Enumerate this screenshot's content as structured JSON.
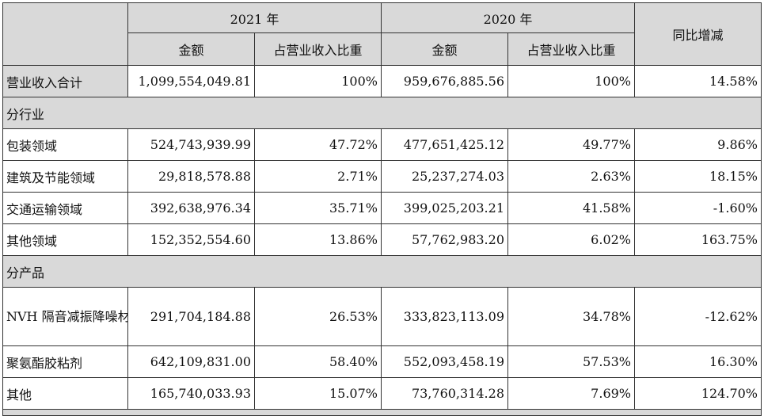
{
  "header": {
    "year_2021": "2021 年",
    "year_2020": "2020 年",
    "yoy": "同比增减",
    "amount": "金额",
    "ratio": "占营业收入比重"
  },
  "total": {
    "label": "营业收入合计",
    "amt_2021": "1,099,554,049.81",
    "pct_2021": "100%",
    "amt_2020": "959,676,885.56",
    "pct_2020": "100%",
    "yoy": "14.58%"
  },
  "by_industry": {
    "title": "分行业",
    "rows": [
      {
        "label": "包装领域",
        "amt_2021": "524,743,939.99",
        "pct_2021": "47.72%",
        "amt_2020": "477,651,425.12",
        "pct_2020": "49.77%",
        "yoy": "9.86%"
      },
      {
        "label": "建筑及节能领域",
        "amt_2021": "29,818,578.88",
        "pct_2021": "2.71%",
        "amt_2020": "25,237,274.03",
        "pct_2020": "2.63%",
        "yoy": "18.15%"
      },
      {
        "label": "交通运输领域",
        "amt_2021": "392,638,976.34",
        "pct_2021": "35.71%",
        "amt_2020": "399,025,203.21",
        "pct_2020": "41.58%",
        "yoy": "-1.60%"
      },
      {
        "label": "其他领域",
        "amt_2021": "152,352,554.60",
        "pct_2021": "13.86%",
        "amt_2020": "57,762,983.20",
        "pct_2020": "6.02%",
        "yoy": "163.75%"
      }
    ]
  },
  "by_product": {
    "title": "分产品",
    "rows": [
      {
        "label": "NVH 隔音减振降噪材料",
        "amt_2021": "291,704,184.88",
        "pct_2021": "26.53%",
        "amt_2020": "333,823,113.09",
        "pct_2020": "34.78%",
        "yoy": "-12.62%"
      },
      {
        "label": "聚氨酯胶粘剂",
        "amt_2021": "642,109,831.00",
        "pct_2021": "58.40%",
        "amt_2020": "552,093,458.19",
        "pct_2020": "57.53%",
        "yoy": "16.30%"
      },
      {
        "label": "其他",
        "amt_2021": "165,740,033.93",
        "pct_2021": "15.07%",
        "amt_2020": "73,760,314.28",
        "pct_2020": "7.69%",
        "yoy": "124.70%"
      }
    ]
  }
}
